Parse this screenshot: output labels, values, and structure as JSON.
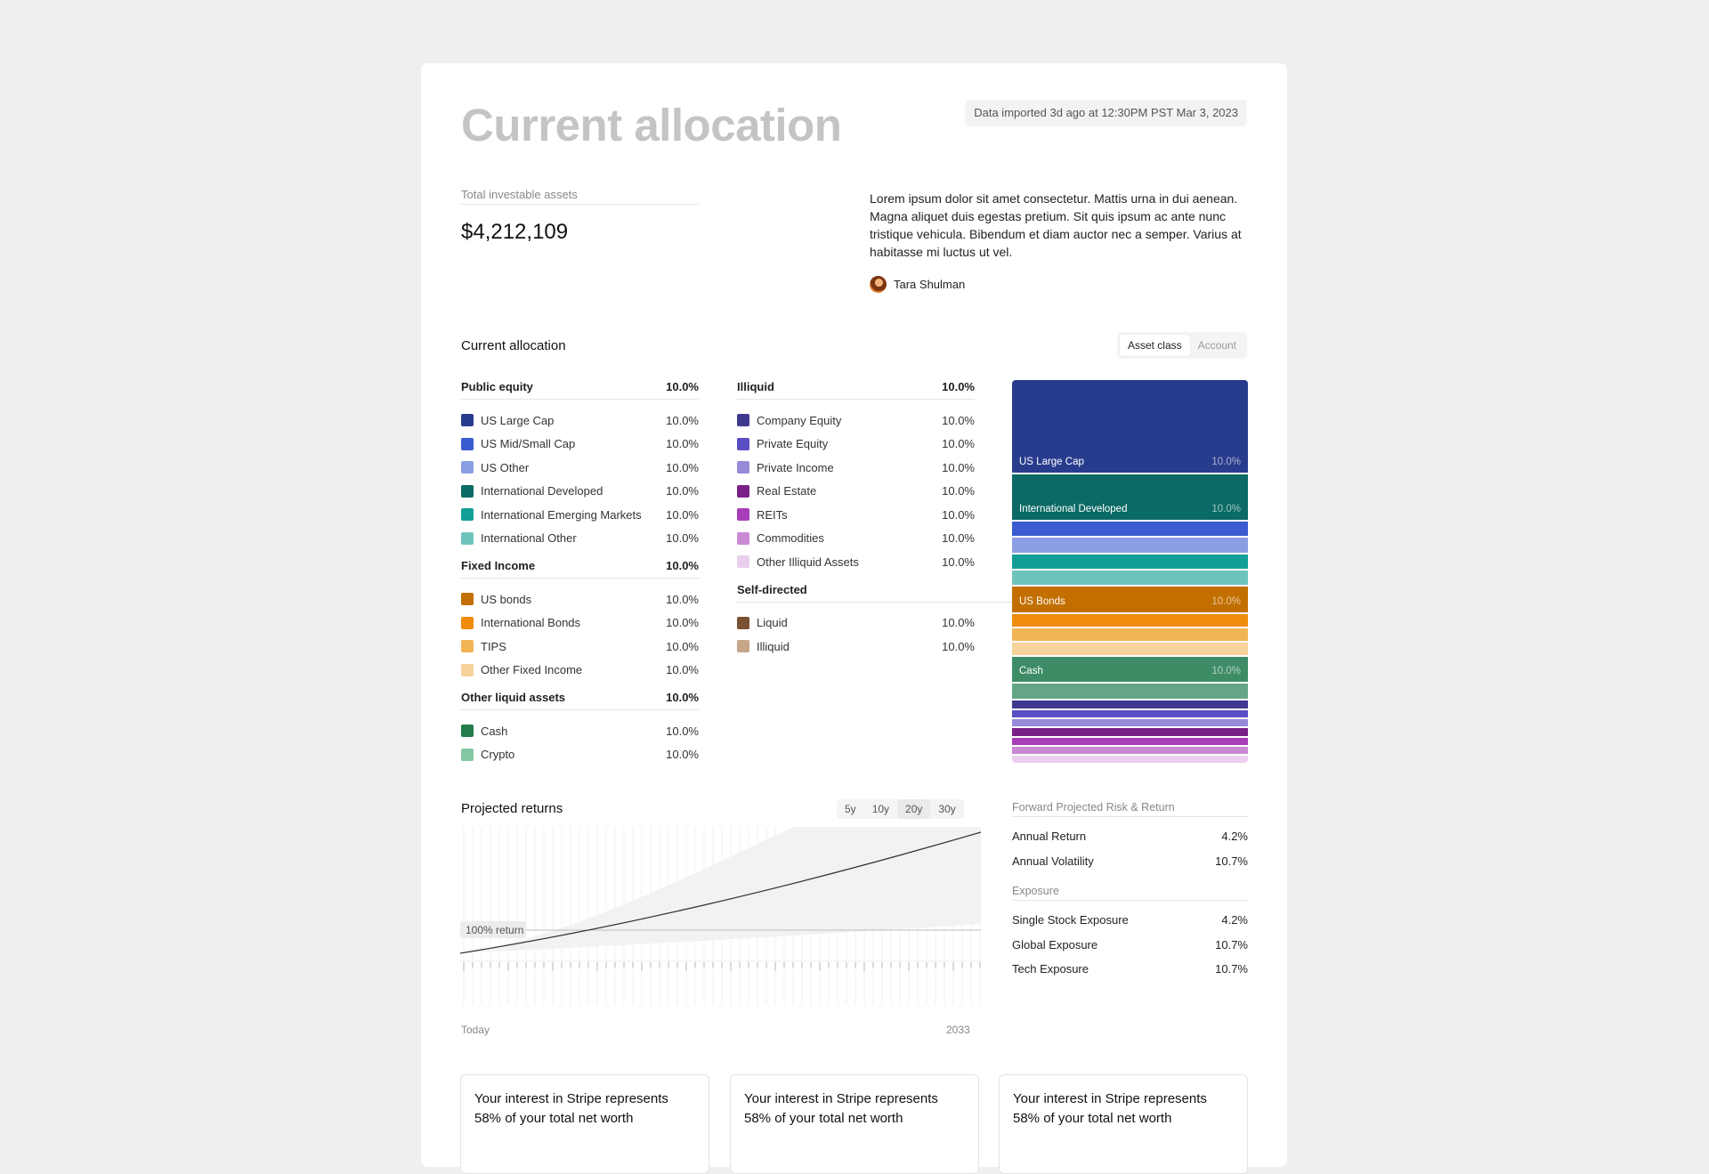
{
  "header": {
    "title": "Current allocation",
    "import_status": "Data imported 3d ago at 12:30PM PST Mar 3, 2023"
  },
  "summary": {
    "assets_label": "Total investable assets",
    "assets_value": "$4,212,109",
    "description": "Lorem ipsum dolor sit amet consectetur. Mattis urna in dui aenean. Magna aliquet duis egestas pretium. Sit quis ipsum ac ante nunc tristique vehicula. Bibendum et diam auctor nec a semper. Varius at habitasse mi luctus ut vel.",
    "author": "Tara Shulman"
  },
  "allocation": {
    "title": "Current allocation",
    "toggle": {
      "options": [
        "Asset class",
        "Account"
      ],
      "selected": "Asset class"
    },
    "left_groups": [
      {
        "name": "Public equity",
        "pct": "10.0%",
        "items": [
          {
            "name": "US Large Cap",
            "pct": "10.0%",
            "color": "#283c8e"
          },
          {
            "name": "US Mid/Small Cap",
            "pct": "10.0%",
            "color": "#3b5bd0"
          },
          {
            "name": "US Other",
            "pct": "10.0%",
            "color": "#8b9ee3"
          },
          {
            "name": "International Developed",
            "pct": "10.0%",
            "color": "#0c6a66"
          },
          {
            "name": "International Emerging Markets",
            "pct": "10.0%",
            "color": "#149e98"
          },
          {
            "name": "International Other",
            "pct": "10.0%",
            "color": "#6fc3bd"
          }
        ]
      },
      {
        "name": "Fixed Income",
        "pct": "10.0%",
        "items": [
          {
            "name": "US bonds",
            "pct": "10.0%",
            "color": "#c26f00"
          },
          {
            "name": "International Bonds",
            "pct": "10.0%",
            "color": "#ef8c0c"
          },
          {
            "name": "TIPS",
            "pct": "10.0%",
            "color": "#f3b454"
          },
          {
            "name": "Other Fixed Income",
            "pct": "10.0%",
            "color": "#f6d39b"
          }
        ]
      },
      {
        "name": "Other liquid assets",
        "pct": "10.0%",
        "items": [
          {
            "name": "Cash",
            "pct": "10.0%",
            "color": "#237a4b"
          },
          {
            "name": "Crypto",
            "pct": "10.0%",
            "color": "#82c7a1"
          }
        ]
      }
    ],
    "right_groups": [
      {
        "name": "Illiquid",
        "pct": "10.0%",
        "items": [
          {
            "name": "Company Equity",
            "pct": "10.0%",
            "color": "#3f3a8f"
          },
          {
            "name": "Private Equity",
            "pct": "10.0%",
            "color": "#5a4fc4"
          },
          {
            "name": "Private Income",
            "pct": "10.0%",
            "color": "#968ad9"
          },
          {
            "name": "Real Estate",
            "pct": "10.0%",
            "color": "#7a1f88"
          },
          {
            "name": "REITs",
            "pct": "10.0%",
            "color": "#a83db9"
          },
          {
            "name": "Commodities",
            "pct": "10.0%",
            "color": "#c989d4"
          },
          {
            "name": "Other Illiquid Assets",
            "pct": "10.0%",
            "color": "#ebcfee"
          }
        ]
      },
      {
        "name": "Self-directed",
        "pct": "",
        "items": [
          {
            "name": "Liquid",
            "pct": "10.0%",
            "color": "#7a5233"
          },
          {
            "name": "Illiquid",
            "pct": "10.0%",
            "color": "#c8a68a"
          }
        ]
      }
    ],
    "stack_labels": [
      {
        "name": "US Large Cap",
        "pct": "10.0%"
      },
      {
        "name": "International Developed",
        "pct": "10.0%"
      },
      {
        "name": "US Bonds",
        "pct": "10.0%"
      },
      {
        "name": "Cash",
        "pct": "10.0%"
      }
    ]
  },
  "projection": {
    "title": "Projected returns",
    "horizons": [
      "5y",
      "10y",
      "20y",
      "30y"
    ],
    "selected_horizon": "20y",
    "reference_label": "100% return",
    "x_start": "Today",
    "x_end": "2033"
  },
  "risk": {
    "title": "Forward Projected Risk & Return",
    "rows": [
      {
        "label": "Annual Return",
        "value": "4.2%"
      },
      {
        "label": "Annual Volatility",
        "value": "10.7%"
      }
    ],
    "exposure_title": "Exposure",
    "exposure_rows": [
      {
        "label": "Single Stock Exposure",
        "value": "4.2%"
      },
      {
        "label": "Global Exposure",
        "value": "10.7%"
      },
      {
        "label": "Tech Exposure",
        "value": "10.7%"
      }
    ]
  },
  "cards": [
    {
      "text": "Your interest in Stripe represents 58% of your total net worth"
    },
    {
      "text": "Your interest in Stripe represents 58% of your total net worth"
    },
    {
      "text": "Your interest in Stripe represents 58% of your total net worth"
    }
  ]
}
